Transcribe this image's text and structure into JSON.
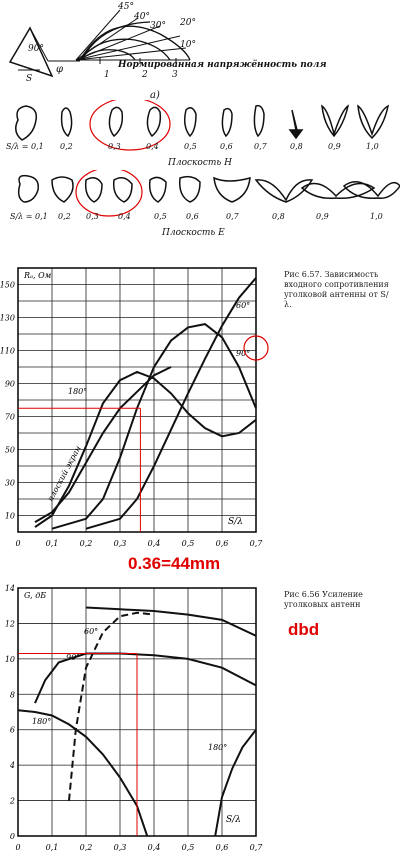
{
  "diagram": {
    "angles": [
      "45°",
      "40°",
      "30°",
      "20°",
      "10°"
    ],
    "corner_angle": "90°",
    "phi": "φ",
    "s_label": "S",
    "field_label": "Нормированная напряжённость поля",
    "sub_label": "а)",
    "radial_ticks": [
      "1",
      "2",
      "3"
    ]
  },
  "pattern_rows": [
    {
      "plane_label": "Плоскость H",
      "ratios": [
        "S/λ = 0,1",
        "0,2",
        "0,3",
        "0,4",
        "0,5",
        "0,6",
        "0,7",
        "0,8",
        "0,9",
        "1,0"
      ],
      "circled": [
        "0,3",
        "0,4"
      ]
    },
    {
      "plane_label": "Плоскость E",
      "ratios": [
        "S/λ = 0,1",
        "0,2",
        "0,3",
        "0,4",
        "0,5",
        "0,6",
        "0,7",
        "0,8",
        "0,9",
        "1,0"
      ],
      "circled": [
        "0,3",
        "0,4"
      ]
    }
  ],
  "chart1_caption": "Рис 6.57. Зависимость входного сопротивления уголковой антенны от S/λ.",
  "chart1_annotation": "0.36=44mm",
  "chart2_caption": "Рис 6.56   Усиление уголковых антенн",
  "chart2_annotation": "dbd",
  "chart_data": [
    {
      "type": "line",
      "ylabel": "Rₐ, Ом",
      "xlabel": "S/λ",
      "xlim": [
        0,
        0.7
      ],
      "ylim": [
        0,
        160
      ],
      "xticks": [
        "0",
        "0,1",
        "0,2",
        "0,3",
        "0,4",
        "0,5",
        "0,6",
        "0,7"
      ],
      "yticks": [
        "10",
        "30",
        "50",
        "70",
        "90",
        "110",
        "130",
        "150"
      ],
      "curve_labels": [
        "плоский экран",
        "180°",
        "60°",
        "90°"
      ],
      "series": [
        {
          "name": "плоский экран",
          "points": [
            [
              0.05,
              6
            ],
            [
              0.1,
              12
            ],
            [
              0.15,
              24
            ],
            [
              0.2,
              42
            ],
            [
              0.25,
              60
            ],
            [
              0.3,
              75
            ],
            [
              0.35,
              85
            ],
            [
              0.4,
              95
            ],
            [
              0.45,
              100
            ]
          ]
        },
        {
          "name": "180°",
          "points": [
            [
              0.05,
              3
            ],
            [
              0.1,
              10
            ],
            [
              0.15,
              28
            ],
            [
              0.2,
              52
            ],
            [
              0.25,
              78
            ],
            [
              0.3,
              92
            ],
            [
              0.35,
              97
            ],
            [
              0.4,
              93
            ],
            [
              0.45,
              84
            ],
            [
              0.5,
              72
            ],
            [
              0.55,
              63
            ],
            [
              0.6,
              58
            ],
            [
              0.65,
              60
            ],
            [
              0.7,
              68
            ]
          ]
        },
        {
          "name": "90°",
          "points": [
            [
              0.1,
              2
            ],
            [
              0.2,
              8
            ],
            [
              0.25,
              20
            ],
            [
              0.3,
              45
            ],
            [
              0.35,
              75
            ],
            [
              0.4,
              100
            ],
            [
              0.45,
              116
            ],
            [
              0.5,
              124
            ],
            [
              0.55,
              126
            ],
            [
              0.6,
              118
            ],
            [
              0.65,
              100
            ],
            [
              0.7,
              75
            ]
          ]
        },
        {
          "name": "60°",
          "points": [
            [
              0.2,
              2
            ],
            [
              0.3,
              8
            ],
            [
              0.35,
              20
            ],
            [
              0.4,
              40
            ],
            [
              0.45,
              62
            ],
            [
              0.5,
              84
            ],
            [
              0.55,
              105
            ],
            [
              0.6,
              125
            ],
            [
              0.65,
              142
            ],
            [
              0.7,
              154
            ]
          ]
        }
      ],
      "markers": {
        "x": 0.36,
        "y": 75
      },
      "circled_label": "90°"
    },
    {
      "type": "line",
      "ylabel": "G, дБ",
      "xlabel": "S/λ",
      "xlim": [
        0,
        0.7
      ],
      "ylim": [
        0,
        14
      ],
      "xticks": [
        "0",
        "0,1",
        "0,2",
        "0,3",
        "0,4",
        "0,5",
        "0,6",
        "0,7"
      ],
      "yticks": [
        "0",
        "2",
        "4",
        "6",
        "8",
        "10",
        "12",
        "14"
      ],
      "curve_labels": [
        "60°",
        "90°",
        "180°",
        "180°"
      ],
      "series": [
        {
          "name": "60°",
          "points": [
            [
              0.2,
              12.9
            ],
            [
              0.3,
              12.8
            ],
            [
              0.4,
              12.7
            ],
            [
              0.5,
              12.5
            ],
            [
              0.6,
              12.2
            ],
            [
              0.7,
              11.3
            ]
          ]
        },
        {
          "name": "60°",
          "dashed": true,
          "points": [
            [
              0.15,
              2
            ],
            [
              0.17,
              6
            ],
            [
              0.2,
              9.5
            ],
            [
              0.25,
              11.5
            ],
            [
              0.3,
              12.4
            ],
            [
              0.35,
              12.6
            ],
            [
              0.4,
              12.5
            ]
          ]
        },
        {
          "name": "90°",
          "points": [
            [
              0.05,
              7.5
            ],
            [
              0.08,
              8.8
            ],
            [
              0.12,
              9.8
            ],
            [
              0.2,
              10.3
            ],
            [
              0.3,
              10.3
            ],
            [
              0.4,
              10.2
            ],
            [
              0.5,
              10
            ],
            [
              0.6,
              9.5
            ],
            [
              0.7,
              8.5
            ]
          ]
        },
        {
          "name": "180°",
          "points": [
            [
              0,
              7.1
            ],
            [
              0.05,
              7
            ],
            [
              0.1,
              6.8
            ],
            [
              0.15,
              6.3
            ],
            [
              0.2,
              5.6
            ],
            [
              0.25,
              4.6
            ],
            [
              0.3,
              3.3
            ],
            [
              0.35,
              1.7
            ],
            [
              0.38,
              0
            ]
          ]
        },
        {
          "name": "180°",
          "points": [
            [
              0.58,
              0
            ],
            [
              0.6,
              2.2
            ],
            [
              0.63,
              3.8
            ],
            [
              0.66,
              5
            ],
            [
              0.7,
              6
            ]
          ]
        }
      ],
      "markers": {
        "x": 0.35,
        "y": 10.3
      }
    }
  ]
}
